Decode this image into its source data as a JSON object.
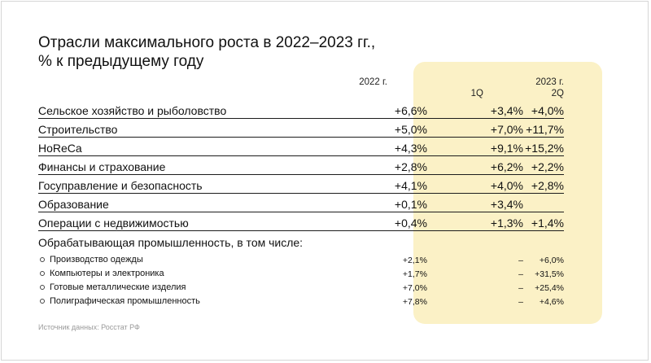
{
  "chart_data": {
    "type": "table",
    "title_lines": [
      "Отрасли максимального роста в 2022–2023 гг.,",
      "% к предыдущему году"
    ],
    "headers": {
      "col_2022": "2022 г.",
      "col_2023": "2023 г.",
      "col_1q": "1Q",
      "col_2q": "2Q"
    },
    "rows": [
      {
        "label": "Сельское хозяйство и рыболовство",
        "y2022": "+6,6%",
        "q1": "+3,4%",
        "q2": "+4,0%"
      },
      {
        "label": "Строительство",
        "y2022": "+5,0%",
        "q1": "+7,0%",
        "q2": "+11,7%"
      },
      {
        "label": "HoReCa",
        "y2022": "+4,3%",
        "q1": "+9,1%",
        "q2": "+15,2%"
      },
      {
        "label": "Финансы и страхование",
        "y2022": "+2,8%",
        "q1": "+6,2%",
        "q2": "+2,2%"
      },
      {
        "label": "Госуправление и безопасность",
        "y2022": "+4,1%",
        "q1": "+4,0%",
        "q2": "+2,8%"
      },
      {
        "label": "Образование",
        "y2022": "+0,1%",
        "q1": "+3,4%",
        "q2": ""
      },
      {
        "label": "Операции с недвижимостью",
        "y2022": "+0,4%",
        "q1": "+1,3%",
        "q2": "+1,4%"
      }
    ],
    "subheading": "Обрабатывающая промышленность, в том числе:",
    "subrows": [
      {
        "label": "Производство одежды",
        "y2022": "+2,1%",
        "q1": "–",
        "q2": "+6,0%"
      },
      {
        "label": "Компьютеры и электроника",
        "y2022": "+1,7%",
        "q1": "–",
        "q2": "+31,5%"
      },
      {
        "label": "Готовые металлические изделия",
        "y2022": "+7,0%",
        "q1": "–",
        "q2": "+25,4%"
      },
      {
        "label": "Полиграфическая промышленность",
        "y2022": "+7,8%",
        "q1": "–",
        "q2": "+4,6%"
      }
    ],
    "source": "Источник данных: Росстат РФ",
    "highlight_color": "#fbf1c6"
  }
}
